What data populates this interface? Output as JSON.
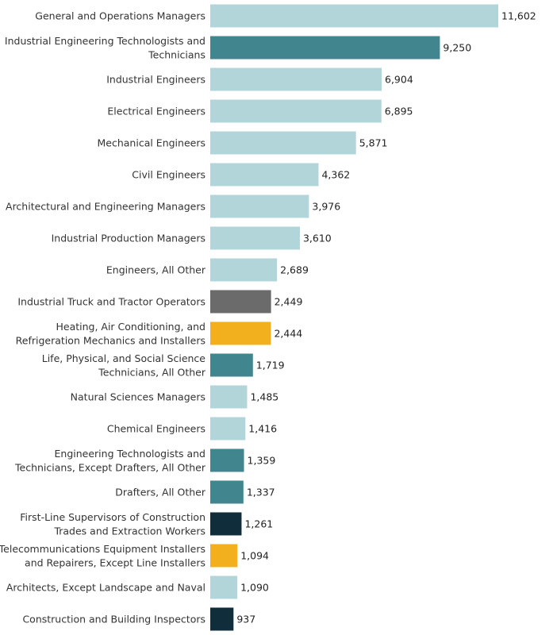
{
  "chart_data": {
    "type": "bar",
    "orientation": "horizontal",
    "title": "",
    "xlabel": "",
    "ylabel": "",
    "xlim": [
      0,
      11602
    ],
    "grid": false,
    "colors": {
      "light_teal": "#b2d5d9",
      "teal": "#41868f",
      "gray": "#6b6b6b",
      "gold": "#f2b01e",
      "dark_navy": "#0f2d3a"
    },
    "categories": [
      [
        "General and Operations Managers"
      ],
      [
        "Industrial Engineering Technologists and",
        "Technicians"
      ],
      [
        "Industrial Engineers"
      ],
      [
        "Electrical Engineers"
      ],
      [
        "Mechanical Engineers"
      ],
      [
        "Civil Engineers"
      ],
      [
        "Architectural and Engineering Managers"
      ],
      [
        "Industrial Production Managers"
      ],
      [
        "Engineers, All Other"
      ],
      [
        "Industrial Truck and Tractor Operators"
      ],
      [
        "Heating, Air Conditioning, and",
        "Refrigeration Mechanics and Installers"
      ],
      [
        "Life, Physical, and Social Science",
        "Technicians, All Other"
      ],
      [
        "Natural Sciences Managers"
      ],
      [
        "Chemical Engineers"
      ],
      [
        "Engineering Technologists and",
        "Technicians, Except Drafters, All Other"
      ],
      [
        "Drafters, All Other"
      ],
      [
        "First-Line Supervisors of Construction",
        "Trades and Extraction Workers"
      ],
      [
        "Telecommunications Equipment Installers",
        "and Repairers, Except Line Installers"
      ],
      [
        "Architects, Except Landscape and Naval"
      ],
      [
        "Construction and Building Inspectors"
      ]
    ],
    "values": [
      11602,
      9250,
      6904,
      6895,
      5871,
      4362,
      3976,
      3610,
      2689,
      2449,
      2444,
      1719,
      1485,
      1416,
      1359,
      1337,
      1261,
      1094,
      1090,
      937
    ],
    "value_labels": [
      "11,602",
      "9,250",
      "6,904",
      "6,895",
      "5,871",
      "4,362",
      "3,976",
      "3,610",
      "2,689",
      "2,449",
      "2,444",
      "1,719",
      "1,485",
      "1,416",
      "1,359",
      "1,337",
      "1,261",
      "1,094",
      "1,090",
      "937"
    ],
    "bar_colors": [
      "light_teal",
      "teal",
      "light_teal",
      "light_teal",
      "light_teal",
      "light_teal",
      "light_teal",
      "light_teal",
      "light_teal",
      "gray",
      "gold",
      "teal",
      "light_teal",
      "light_teal",
      "teal",
      "teal",
      "dark_navy",
      "gold",
      "light_teal",
      "dark_navy"
    ]
  }
}
